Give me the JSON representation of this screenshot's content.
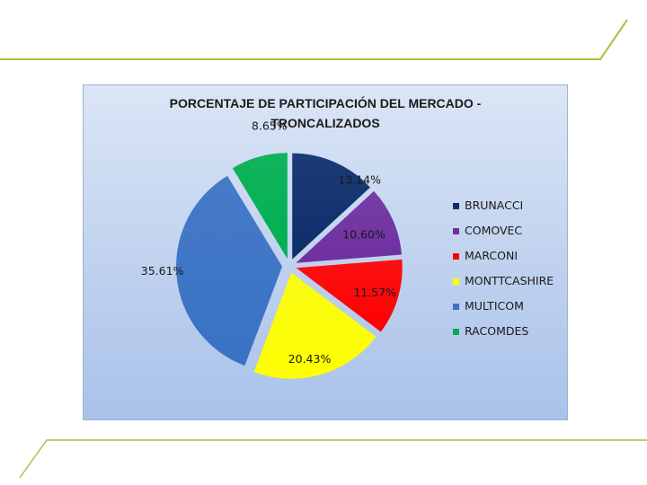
{
  "chart_data": {
    "type": "pie",
    "title": "PORCENTAJE DE PARTICIPACIÓN DEL MERCADO - TRONCALIZADOS",
    "title_lines": [
      "PORCENTAJE DE PARTICIPACIÓN DEL MERCADO -",
      "TRONCALIZADOS"
    ],
    "legend_position": "right",
    "slices": [
      {
        "name": "BRUNACCI",
        "value": 13.14,
        "label": "13.14%",
        "color": "#0d2d6b"
      },
      {
        "name": "COMOVEC",
        "value": 10.6,
        "label": "10.60%",
        "color": "#7030a0"
      },
      {
        "name": "MARCONI",
        "value": 11.57,
        "label": "11.57%",
        "color": "#ff0000"
      },
      {
        "name": "MONTTCASHIRE",
        "value": 20.43,
        "label": "20.43%",
        "color": "#ffff00"
      },
      {
        "name": "MULTICOM",
        "value": 35.61,
        "label": "35.61%",
        "color": "#3a72c4"
      },
      {
        "name": "RACOMDES",
        "value": 8.65,
        "label": "8.65%",
        "color": "#00b050"
      }
    ]
  },
  "decor": {
    "accent_color": "#a9c23f"
  }
}
